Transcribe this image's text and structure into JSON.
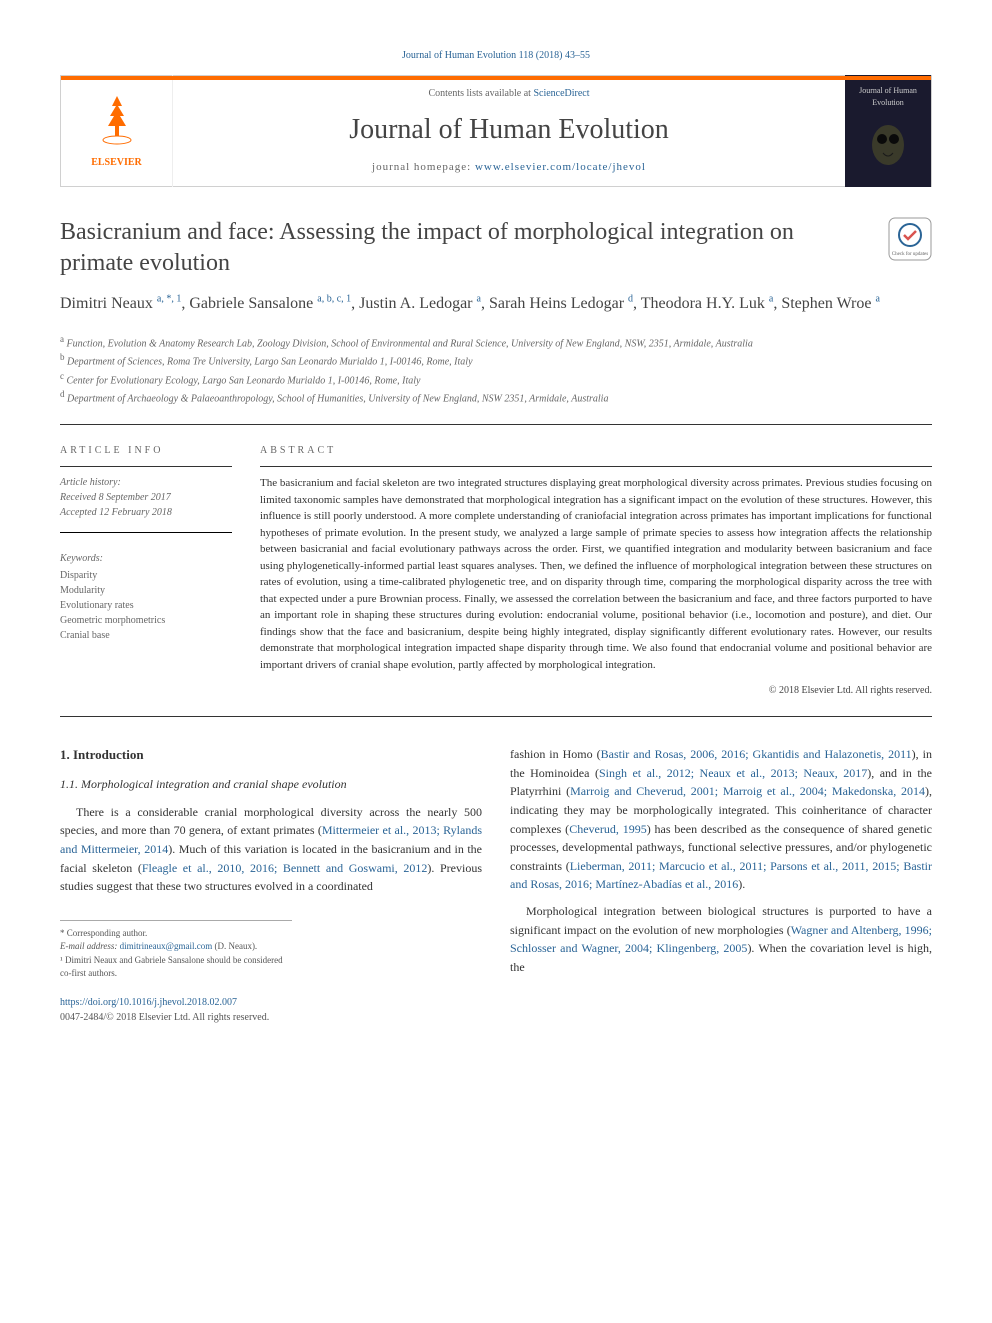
{
  "journal": {
    "citation_link": "Journal of Human Evolution 118 (2018) 43–55",
    "contents_prefix": "Contents lists available at ",
    "contents_link": "ScienceDirect",
    "name": "Journal of Human Evolution",
    "homepage_prefix": "journal homepage: ",
    "homepage_url": "www.elsevier.com/locate/jhevol",
    "publisher_logo_text": "ELSEVIER",
    "cover_text": "Journal of Human Evolution"
  },
  "article": {
    "title": "Basicranium and face: Assessing the impact of morphological integration on primate evolution",
    "authors_html": "Dimitri Neaux <sup>a, *, 1</sup>, Gabriele Sansalone <sup>a, b, c, 1</sup>, Justin A. Ledogar <sup>a</sup>, Sarah Heins Ledogar <sup>d</sup>, Theodora H.Y. Luk <sup>a</sup>, Stephen Wroe <sup>a</sup>",
    "affiliations": [
      {
        "sup": "a",
        "text": "Function, Evolution & Anatomy Research Lab, Zoology Division, School of Environmental and Rural Science, University of New England, NSW, 2351, Armidale, Australia"
      },
      {
        "sup": "b",
        "text": "Department of Sciences, Roma Tre University, Largo San Leonardo Murialdo 1, I-00146, Rome, Italy"
      },
      {
        "sup": "c",
        "text": "Center for Evolutionary Ecology, Largo San Leonardo Murialdo 1, I-00146, Rome, Italy"
      },
      {
        "sup": "d",
        "text": "Department of Archaeology & Palaeoanthropology, School of Humanities, University of New England, NSW 2351, Armidale, Australia"
      }
    ]
  },
  "article_info": {
    "heading": "ARTICLE INFO",
    "history_label": "Article history:",
    "received": "Received 8 September 2017",
    "accepted": "Accepted 12 February 2018",
    "keywords_label": "Keywords:",
    "keywords": [
      "Disparity",
      "Modularity",
      "Evolutionary rates",
      "Geometric morphometrics",
      "Cranial base"
    ]
  },
  "abstract": {
    "heading": "ABSTRACT",
    "text": "The basicranium and facial skeleton are two integrated structures displaying great morphological diversity across primates. Previous studies focusing on limited taxonomic samples have demonstrated that morphological integration has a significant impact on the evolution of these structures. However, this influence is still poorly understood. A more complete understanding of craniofacial integration across primates has important implications for functional hypotheses of primate evolution. In the present study, we analyzed a large sample of primate species to assess how integration affects the relationship between basicranial and facial evolutionary pathways across the order. First, we quantified integration and modularity between basicranium and face using phylogenetically-informed partial least squares analyses. Then, we defined the influence of morphological integration between these structures on rates of evolution, using a time-calibrated phylogenetic tree, and on disparity through time, comparing the morphological disparity across the tree with that expected under a pure Brownian process. Finally, we assessed the correlation between the basicranium and face, and three factors purported to have an important role in shaping these structures during evolution: endocranial volume, positional behavior (i.e., locomotion and posture), and diet. Our findings show that the face and basicranium, despite being highly integrated, display significantly different evolutionary rates. However, our results demonstrate that morphological integration impacted shape disparity through time. We also found that endocranial volume and positional behavior are important drivers of cranial shape evolution, partly affected by morphological integration.",
    "copyright": "© 2018 Elsevier Ltd. All rights reserved."
  },
  "sections": {
    "intro_heading": "1. Introduction",
    "subintro_heading": "1.1. Morphological integration and cranial shape evolution"
  },
  "body": {
    "left_p1_prefix": "There is a considerable cranial morphological diversity across the nearly 500 species, and more than 70 genera, of extant primates (",
    "left_p1_link1": "Mittermeier et al., 2013; Rylands and Mittermeier, 2014",
    "left_p1_mid": "). Much of this variation is located in the basicranium and in the facial skeleton (",
    "left_p1_link2": "Fleagle et al., 2010, 2016; Bennett and Goswami, 2012",
    "left_p1_suffix": "). Previous studies suggest that these two structures evolved in a coordinated",
    "right_p1_prefix": "fashion in Homo (",
    "right_p1_link1": "Bastir and Rosas, 2006, 2016; Gkantidis and Halazonetis, 2011",
    "right_p1_mid1": "), in the Hominoidea (",
    "right_p1_link2": "Singh et al., 2012; Neaux et al., 2013; Neaux, 2017",
    "right_p1_mid2": "), and in the Platyrrhini (",
    "right_p1_link3": "Marroig and Cheverud, 2001; Marroig et al., 2004; Makedonska, 2014",
    "right_p1_mid3": "), indicating they may be morphologically integrated. This coinheritance of character complexes (",
    "right_p1_link4": "Cheverud, 1995",
    "right_p1_mid4": ") has been described as the consequence of shared genetic processes, developmental pathways, functional selective pressures, and/or phylogenetic constraints (",
    "right_p1_link5": "Lieberman, 2011; Marcucio et al., 2011; Parsons et al., 2011, 2015; Bastir and Rosas, 2016; Martínez-Abadías et al., 2016",
    "right_p1_suffix": ").",
    "right_p2_prefix": "Morphological integration between biological structures is purported to have a significant impact on the evolution of new morphologies (",
    "right_p2_link1": "Wagner and Altenberg, 1996; Schlosser and Wagner, 2004; Klingenberg, 2005",
    "right_p2_suffix": "). When the covariation level is high, the"
  },
  "footnotes": {
    "corresponding": "* Corresponding author.",
    "email_label": "E-mail address: ",
    "email": "dimitrineaux@gmail.com",
    "email_name": " (D. Neaux).",
    "note1": "¹ Dimitri Neaux and Gabriele Sansalone should be considered co-first authors."
  },
  "doi": {
    "url": "https://doi.org/10.1016/j.jhevol.2018.02.007",
    "issn_line": "0047-2484/© 2018 Elsevier Ltd. All rights reserved."
  },
  "colors": {
    "link": "#2a6496",
    "accent": "#ff6c00",
    "text": "#333333",
    "muted": "#666666",
    "rule": "#333333"
  }
}
